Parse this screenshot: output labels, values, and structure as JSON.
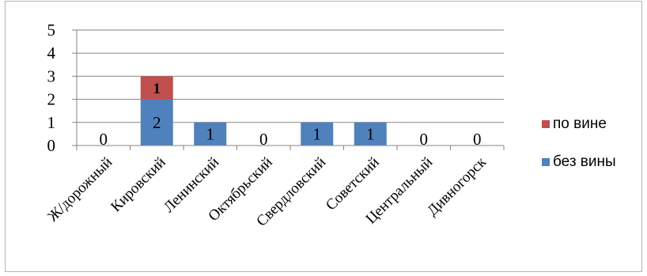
{
  "chart_data": {
    "type": "bar",
    "stacked": true,
    "categories": [
      "Ж/дорожный",
      "Кировский",
      "Ленинский",
      "Октябрьский",
      "Свердловский",
      "Советский",
      "Центральный",
      "Дивногорск"
    ],
    "series": [
      {
        "name": "без вины",
        "values": [
          0,
          2,
          1,
          0,
          1,
          1,
          0,
          0
        ],
        "color": "#4f81bd"
      },
      {
        "name": "по вине",
        "values": [
          0,
          1,
          0,
          0,
          0,
          0,
          0,
          0
        ],
        "color": "#c0504d"
      }
    ],
    "data_labels": {
      "без вины": [
        "0",
        "2",
        "1",
        "0",
        "1",
        "1",
        "0",
        "0"
      ],
      "по вине": [
        "",
        "1",
        "",
        "",
        "",
        "",
        "",
        ""
      ]
    },
    "ylim": [
      0,
      5
    ],
    "yticks": [
      "0",
      "1",
      "2",
      "3",
      "4",
      "5"
    ],
    "grid": true,
    "legend": "right",
    "title": "",
    "xlabel": "",
    "ylabel": ""
  }
}
